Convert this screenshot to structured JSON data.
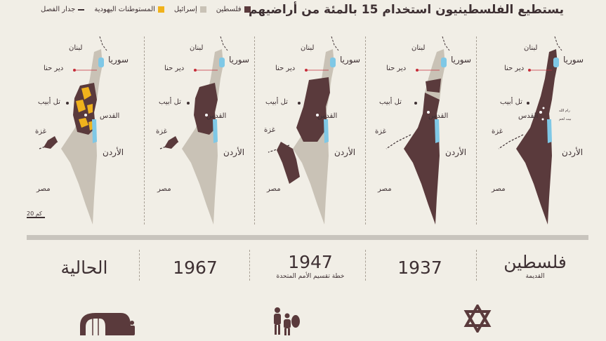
{
  "header": {
    "title": "يستطيع الفلسطينيون استخدام 15 بالمئة من أراضيهم"
  },
  "legend": {
    "items": [
      {
        "label": "فلسطين",
        "color": "#5a3a3c"
      },
      {
        "label": "إسرائيل",
        "color": "#c9c2b6"
      },
      {
        "label": "المستوطنات اليهودية",
        "color": "#f0b21c"
      },
      {
        "label": "جدار الفصل",
        "color": "#3e3033"
      }
    ]
  },
  "colors": {
    "palestine": "#5a3a3c",
    "israel": "#c9c2b6",
    "settlement": "#f0b21c",
    "water": "#7fc8e6",
    "background": "#f1eee6"
  },
  "place_labels": {
    "lebanon": "لبنان",
    "syria": "سوريا",
    "deir_hanna": "دير حنا",
    "tel_aviv": "تل أبيب",
    "jerusalem": "القدس",
    "gaza": "غزة",
    "jordan": "الأردن",
    "egypt": "مصر",
    "ramallah": "رام الله",
    "bethlehem": "بيت لحم"
  },
  "scale": {
    "label": "20 كم"
  },
  "periods": [
    {
      "title": "فلسطين",
      "subtitle": "القديمة"
    },
    {
      "title": "1937",
      "subtitle": ""
    },
    {
      "title": "1947",
      "subtitle": "خطة تقسيم الأمم المتحدة"
    },
    {
      "title": "1967",
      "subtitle": ""
    },
    {
      "title": "الحالية",
      "subtitle": ""
    }
  ],
  "icons": [
    "star-of-david-icon",
    "refugee-family-icon",
    "refugee-camp-icon"
  ]
}
